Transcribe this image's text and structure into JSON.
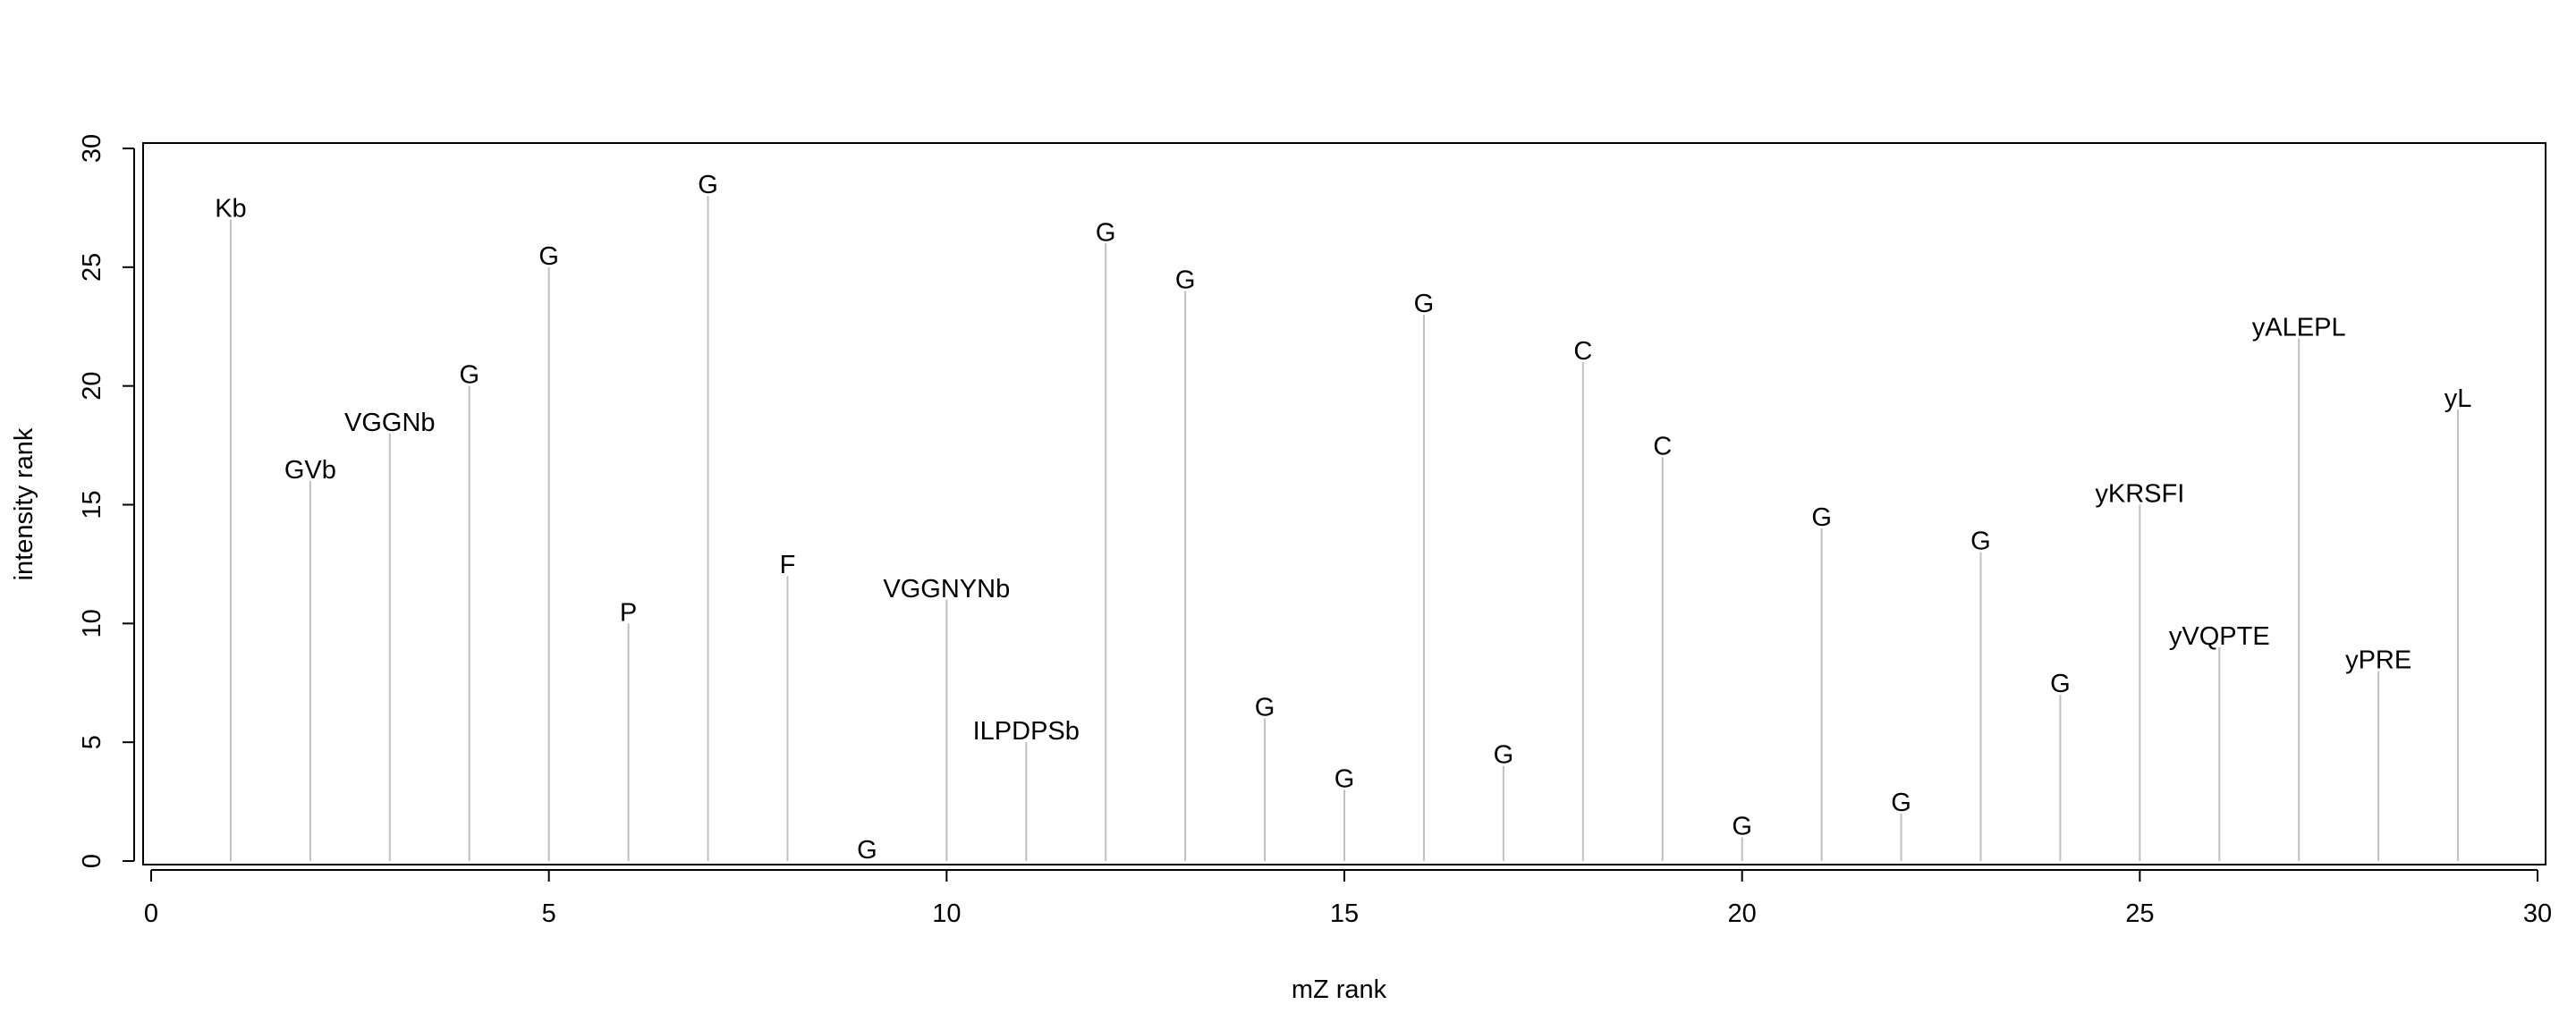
{
  "chart_data": {
    "type": "stem",
    "xlabel": "mZ rank",
    "ylabel": "intensity rank",
    "xlim": [
      0,
      30
    ],
    "ylim": [
      0,
      30
    ],
    "x_ticks": [
      0,
      5,
      10,
      15,
      20,
      25,
      30
    ],
    "y_ticks": [
      0,
      5,
      10,
      15,
      20,
      25,
      30
    ],
    "grid": false,
    "stem_color": "#c0c0c0",
    "points": [
      {
        "x": 1,
        "y": 27,
        "label": "Kb"
      },
      {
        "x": 2,
        "y": 16,
        "label": "GVb"
      },
      {
        "x": 3,
        "y": 18,
        "label": "VGGNb"
      },
      {
        "x": 4,
        "y": 20,
        "label": "G"
      },
      {
        "x": 5,
        "y": 25,
        "label": "G"
      },
      {
        "x": 6,
        "y": 10,
        "label": "P"
      },
      {
        "x": 7,
        "y": 28,
        "label": "G"
      },
      {
        "x": 8,
        "y": 12,
        "label": "F"
      },
      {
        "x": 9,
        "y": 0,
        "label": "G"
      },
      {
        "x": 10,
        "y": 11,
        "label": "VGGNYNb"
      },
      {
        "x": 11,
        "y": 5,
        "label": "ILPDPSb"
      },
      {
        "x": 12,
        "y": 26,
        "label": "G"
      },
      {
        "x": 13,
        "y": 24,
        "label": "G"
      },
      {
        "x": 14,
        "y": 6,
        "label": "G"
      },
      {
        "x": 15,
        "y": 3,
        "label": "G"
      },
      {
        "x": 16,
        "y": 23,
        "label": "G"
      },
      {
        "x": 17,
        "y": 4,
        "label": "G"
      },
      {
        "x": 18,
        "y": 21,
        "label": "C"
      },
      {
        "x": 19,
        "y": 17,
        "label": "C"
      },
      {
        "x": 20,
        "y": 1,
        "label": "G"
      },
      {
        "x": 21,
        "y": 14,
        "label": "G"
      },
      {
        "x": 22,
        "y": 2,
        "label": "G"
      },
      {
        "x": 23,
        "y": 13,
        "label": "G"
      },
      {
        "x": 24,
        "y": 7,
        "label": "G"
      },
      {
        "x": 25,
        "y": 15,
        "label": "yKRSFI"
      },
      {
        "x": 26,
        "y": 9,
        "label": "yVQPTE"
      },
      {
        "x": 27,
        "y": 22,
        "label": "yALEPL"
      },
      {
        "x": 28,
        "y": 8,
        "label": "yPRE"
      },
      {
        "x": 29,
        "y": 19,
        "label": "yL"
      }
    ]
  }
}
